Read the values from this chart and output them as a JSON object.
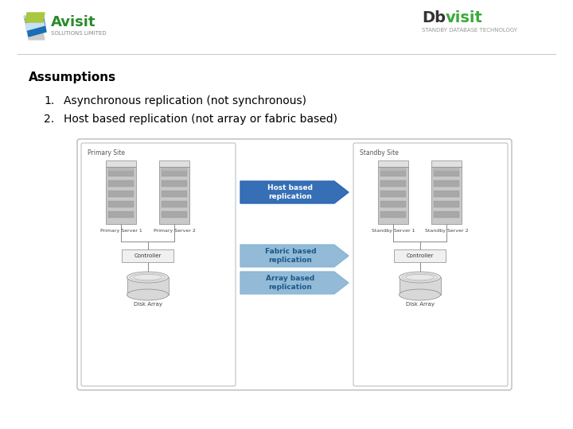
{
  "title": "Assumptions",
  "items": [
    "Asynchronous replication (not synchronous)",
    "Host based replication (not array or fabric based)"
  ],
  "bg_color": "#ffffff",
  "title_color": "#000000",
  "title_fontsize": 11,
  "item_fontsize": 10,
  "diagram": {
    "primary_site_label": "Primary Site",
    "standby_site_label": "Standby Site",
    "primary_server_labels": [
      "Primary Server 1",
      "Primary Server 2"
    ],
    "standby_server_labels": [
      "Standby Server 1",
      "Standby Server 2"
    ],
    "left_controller_label": "Controller",
    "right_controller_label": "Controller",
    "left_disk_label": "Disk Array",
    "right_disk_label": "Disk Array",
    "arrow_labels": [
      "Host based\nreplication",
      "Fabric based\nreplication",
      "Array based\nreplication"
    ],
    "arrow_colors": [
      "#2563b0",
      "#8ab4d4",
      "#8ab4d4"
    ],
    "arrow_text_colors": [
      "#ffffff",
      "#1a5a8a",
      "#1a5a8a"
    ],
    "box_border": "#aaaaaa",
    "server_body_color": "#c8c8c8",
    "server_drive_color": "#a8a8a8",
    "server_top_color": "#e0e0e0",
    "controller_color": "#f0f0f0",
    "disk_body_color": "#d8d8d8",
    "disk_top_color": "#e8e8e8"
  }
}
